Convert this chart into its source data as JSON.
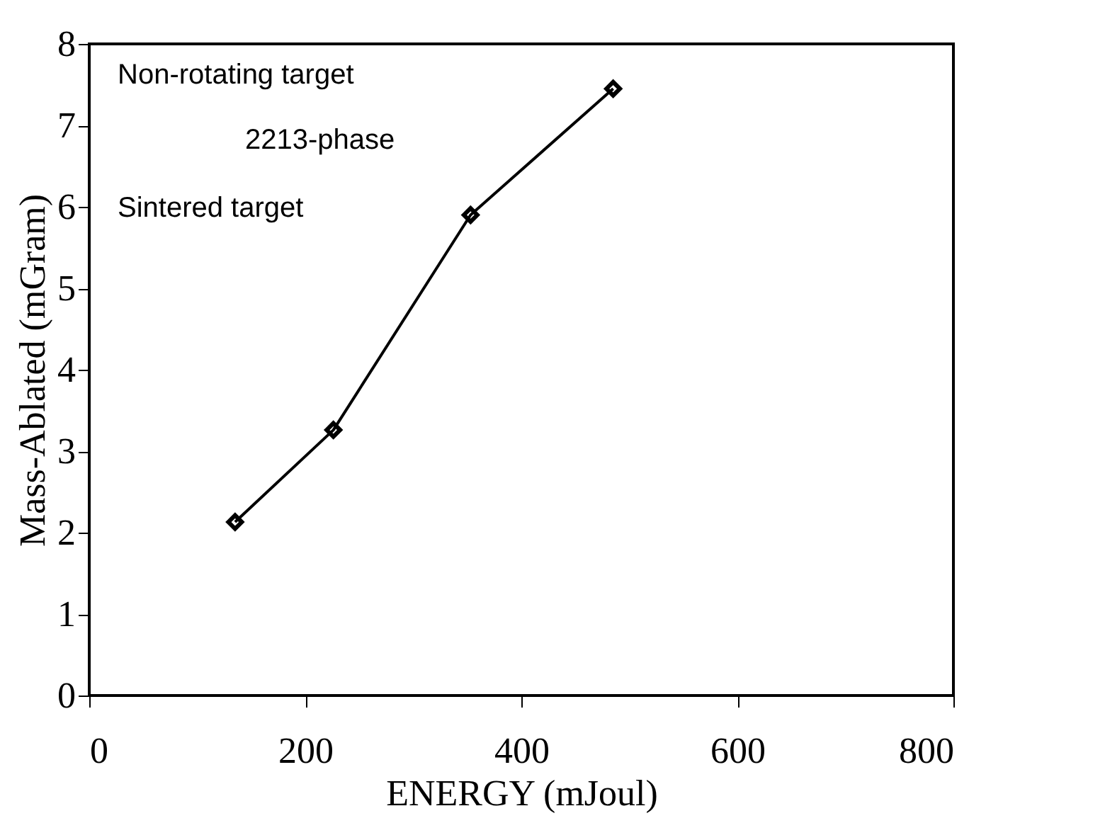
{
  "chart_data": {
    "type": "line",
    "xlabel": "ENERGY  (mJoul)",
    "ylabel": "Mass-Ablated  (mGram)",
    "x": [
      135,
      226,
      353,
      485
    ],
    "series": [
      {
        "color": "#000000",
        "values": [
          2.13,
          3.26,
          5.9,
          7.45
        ]
      }
    ],
    "xlim": [
      0,
      800
    ],
    "xticks": [
      0,
      200,
      400,
      600,
      800
    ],
    "ylim": [
      0,
      8
    ],
    "yticks": [
      0,
      1,
      2,
      3,
      4,
      5,
      6,
      7,
      8
    ],
    "grid": false,
    "marker": "diamond",
    "line_style": "solid",
    "annotations": [
      "Non-rotating target",
      "2213-phase",
      "Sintered  target"
    ]
  }
}
